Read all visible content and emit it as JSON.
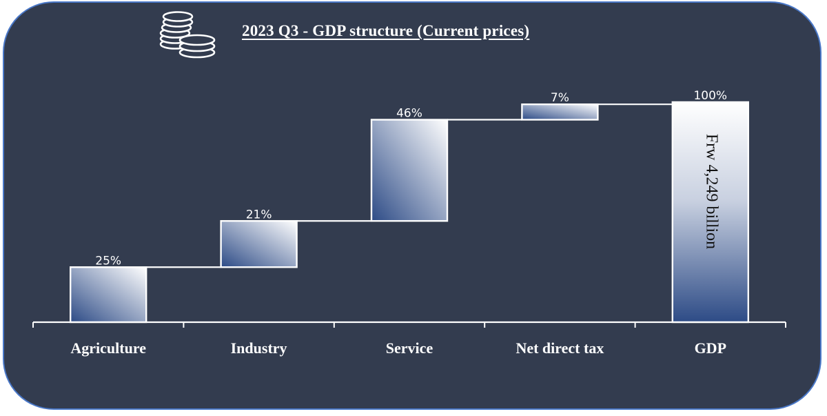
{
  "title": "2023 Q3 - GDP structure (Current prices)",
  "icons": {
    "header_icon": "coin-stack-icon"
  },
  "colors": {
    "background": "#333c4f",
    "border": "#4a78c8",
    "bar_dark": "#2d4b86",
    "bar_light": "#ffffff",
    "text": "#ffffff",
    "annotation_text": "#111111"
  },
  "chart_data": {
    "type": "bar",
    "subtype": "waterfall",
    "title": "2023 Q3 - GDP structure (Current prices)",
    "categories": [
      "Agriculture",
      "Industry",
      "Service",
      "Net direct tax",
      "GDP"
    ],
    "values": [
      25,
      21,
      46,
      7,
      100
    ],
    "value_labels": [
      "25%",
      "21%",
      "46%",
      "7%",
      "100%"
    ],
    "total_index": 4,
    "annotation": "Frw 4,249 billion",
    "ylim": [
      0,
      100
    ],
    "grid": false,
    "legend": "none"
  }
}
